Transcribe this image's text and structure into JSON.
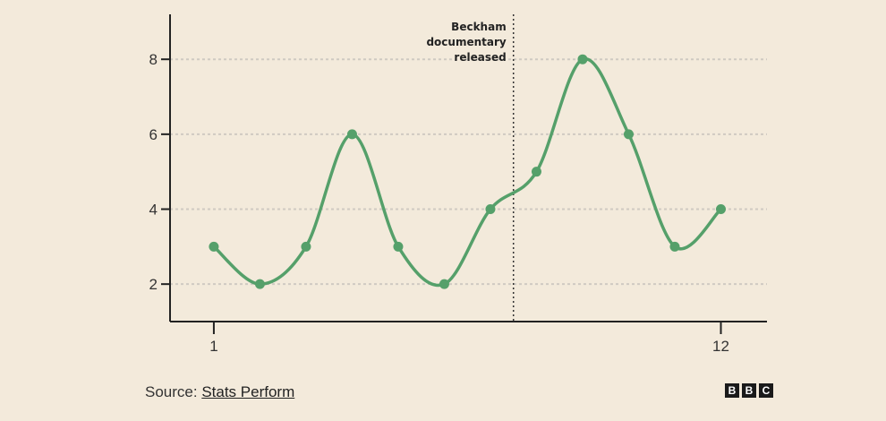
{
  "chart_data": {
    "type": "line",
    "x": [
      1,
      2,
      3,
      4,
      5,
      6,
      7,
      8,
      9,
      10,
      11,
      12
    ],
    "series": [
      {
        "values": [
          3,
          2,
          3,
          6,
          3,
          2,
          4,
          5,
          8,
          6,
          3,
          4
        ],
        "color": "#55a06a"
      }
    ],
    "x_ticks": [
      "1",
      "12"
    ],
    "x_tick_values": [
      1,
      12
    ],
    "y_ticks": [
      "2",
      "4",
      "6",
      "8"
    ],
    "y_tick_values": [
      2,
      4,
      6,
      8
    ],
    "xlim": [
      0.05,
      13.0
    ],
    "ylim": [
      1.0,
      9.2
    ],
    "grid": true,
    "annotation": {
      "x": 7.5,
      "lines": [
        "Beckham",
        "documentary",
        "released"
      ]
    },
    "title": "",
    "xlabel": "",
    "ylabel": ""
  },
  "footer": {
    "source_prefix": "Source: ",
    "source_link": "Stats Perform",
    "logo_letters": [
      "B",
      "B",
      "C"
    ]
  }
}
